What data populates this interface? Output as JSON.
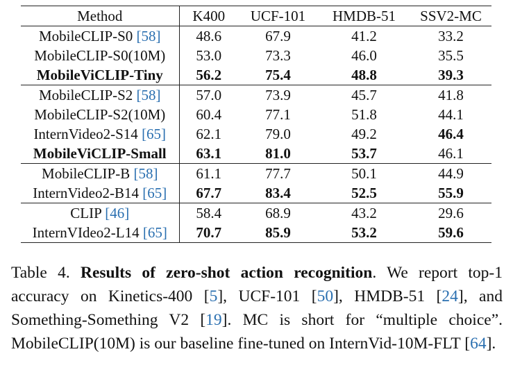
{
  "table": {
    "headers": [
      "Method",
      "K400",
      "UCF-101",
      "HMDB-51",
      "SSV2-MC"
    ],
    "rows": [
      {
        "method": "MobileCLIP-S0 ",
        "ref": "[58]",
        "values": [
          "48.6",
          "67.9",
          "41.2",
          "33.2"
        ],
        "bold_method": false,
        "bold": [
          false,
          false,
          false,
          false
        ],
        "group_end": false
      },
      {
        "method": "MobileCLIP-S0(10M)",
        "ref": "",
        "values": [
          "53.0",
          "73.3",
          "46.0",
          "35.5"
        ],
        "bold_method": false,
        "bold": [
          false,
          false,
          false,
          false
        ],
        "group_end": false
      },
      {
        "method": "MobileViCLIP-Tiny",
        "ref": "",
        "values": [
          "56.2",
          "75.4",
          "48.8",
          "39.3"
        ],
        "bold_method": true,
        "bold": [
          true,
          true,
          true,
          true
        ],
        "group_end": true
      },
      {
        "method": "MobileCLIP-S2 ",
        "ref": "[58]",
        "values": [
          "57.0",
          "73.9",
          "45.7",
          "41.8"
        ],
        "bold_method": false,
        "bold": [
          false,
          false,
          false,
          false
        ],
        "group_end": false
      },
      {
        "method": "MobileCLIP-S2(10M)",
        "ref": "",
        "values": [
          "60.4",
          "77.1",
          "51.8",
          "44.1"
        ],
        "bold_method": false,
        "bold": [
          false,
          false,
          false,
          false
        ],
        "group_end": false
      },
      {
        "method": "InternVideo2-S14 ",
        "ref": "[65]",
        "values": [
          "62.1",
          "79.0",
          "49.2",
          "46.4"
        ],
        "bold_method": false,
        "bold": [
          false,
          false,
          false,
          true
        ],
        "group_end": false
      },
      {
        "method": "MobileViCLIP-Small",
        "ref": "",
        "values": [
          "63.1",
          "81.0",
          "53.7",
          "46.1"
        ],
        "bold_method": true,
        "bold": [
          true,
          true,
          true,
          false
        ],
        "group_end": true
      },
      {
        "method": "MobileCLIP-B ",
        "ref": "[58]",
        "values": [
          "61.1",
          "77.7",
          "50.1",
          "44.9"
        ],
        "bold_method": false,
        "bold": [
          false,
          false,
          false,
          false
        ],
        "group_end": false
      },
      {
        "method": "InternVideo2-B14 ",
        "ref": "[65]",
        "values": [
          "67.7",
          "83.4",
          "52.5",
          "55.9"
        ],
        "bold_method": false,
        "bold": [
          true,
          true,
          true,
          true
        ],
        "group_end": true
      },
      {
        "method": "CLIP ",
        "ref": "[46]",
        "values": [
          "58.4",
          "68.9",
          "43.2",
          "29.6"
        ],
        "bold_method": false,
        "bold": [
          false,
          false,
          false,
          false
        ],
        "group_end": false
      },
      {
        "method": "InternVIdeo2-L14 ",
        "ref": "[65]",
        "values": [
          "70.7",
          "85.9",
          "53.2",
          "59.6"
        ],
        "bold_method": false,
        "bold": [
          true,
          true,
          true,
          true
        ],
        "group_end": false
      }
    ]
  },
  "caption": {
    "label": "Table 4. ",
    "title": "Results of zero-shot action recognition",
    "parts": [
      {
        "t": ". We report top-1 accuracy on Kinetics-400 ",
        "ref": false
      },
      {
        "t": "[",
        "ref": false
      },
      {
        "t": "5",
        "ref": true
      },
      {
        "t": "], UCF-101 [",
        "ref": false
      },
      {
        "t": "50",
        "ref": true
      },
      {
        "t": "], HMDB-51 [",
        "ref": false
      },
      {
        "t": "24",
        "ref": true
      },
      {
        "t": "], and Something-Something V2 [",
        "ref": false
      },
      {
        "t": "19",
        "ref": true
      },
      {
        "t": "]. MC is short for “multiple choice”. MobileCLIP(10M) is our baseline fine-tuned on InternVid-10M-FLT [",
        "ref": false
      },
      {
        "t": "64",
        "ref": true
      },
      {
        "t": "].",
        "ref": false
      }
    ]
  }
}
